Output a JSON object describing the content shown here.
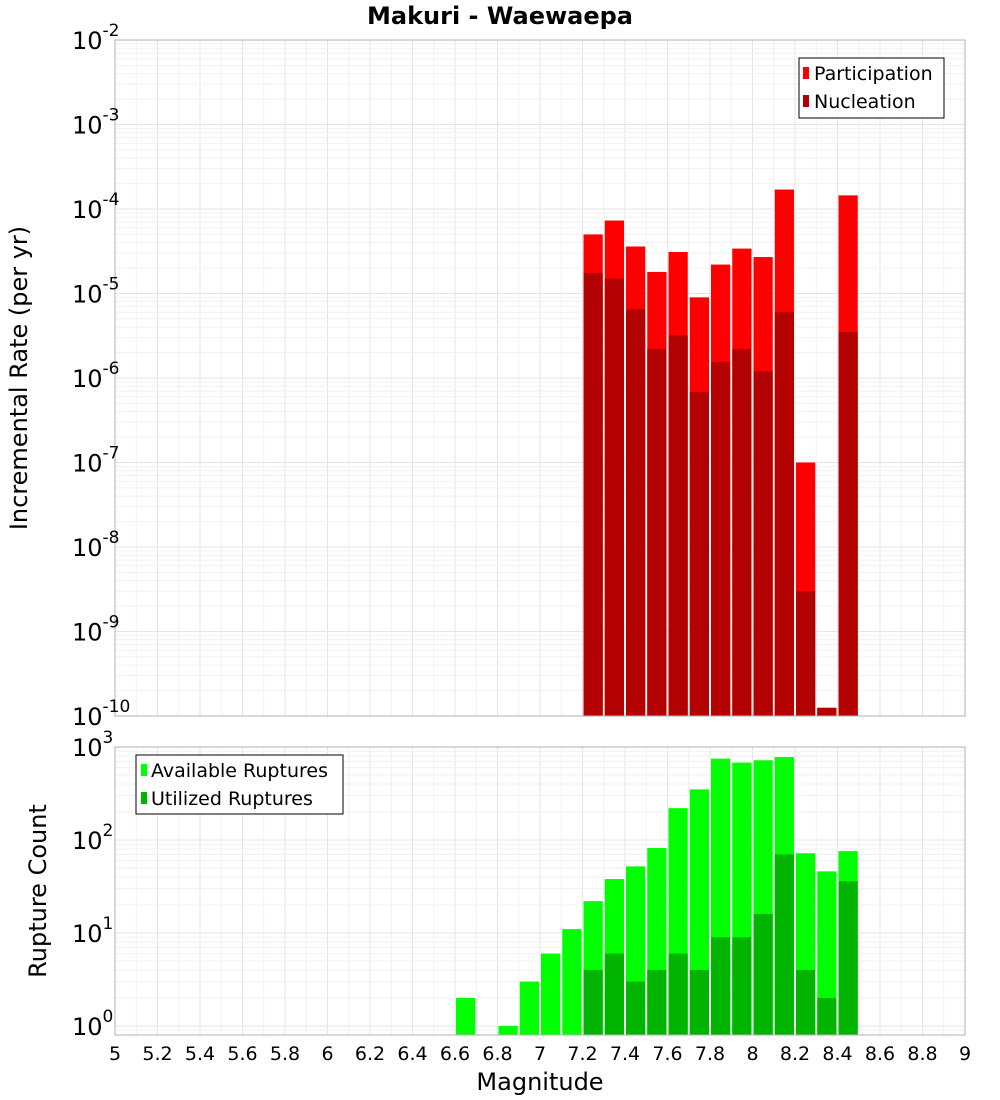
{
  "chart_data": [
    {
      "type": "bar",
      "title": "Makuri - Waewaepa",
      "xlabel": "",
      "ylabel": "Incremental Rate (per yr)",
      "yscale": "log",
      "ylim": [
        1e-10,
        0.01
      ],
      "xlim": [
        5,
        9
      ],
      "bar_width": 0.1,
      "grid": true,
      "legend_position": "top-right",
      "y_tick_exponents": [
        -10,
        -9,
        -8,
        -7,
        -6,
        -5,
        -4,
        -3,
        -2
      ],
      "series": [
        {
          "name": "Participation",
          "color": "#ff0000",
          "x": [
            7.25,
            7.35,
            7.45,
            7.55,
            7.65,
            7.75,
            7.85,
            7.95,
            8.05,
            8.15,
            8.25,
            8.35,
            8.45
          ],
          "values": [
            5e-05,
            7.3e-05,
            3.6e-05,
            1.8e-05,
            3.1e-05,
            9e-06,
            2.2e-05,
            3.4e-05,
            2.7e-05,
            0.00017,
            1e-07,
            1.25e-10,
            0.000145
          ]
        },
        {
          "name": "Nucleation",
          "color": "#b30000",
          "x": [
            7.25,
            7.35,
            7.45,
            7.55,
            7.65,
            7.75,
            7.85,
            7.95,
            8.05,
            8.15,
            8.25,
            8.35,
            8.45
          ],
          "values": [
            1.75e-05,
            1.5e-05,
            6.5e-06,
            2.2e-06,
            3.2e-06,
            6.8e-07,
            1.55e-06,
            2.2e-06,
            1.2e-06,
            6e-06,
            3e-09,
            1.25e-10,
            3.5e-06
          ]
        }
      ]
    },
    {
      "type": "bar",
      "title": "",
      "xlabel": "Magnitude",
      "ylabel": "Rupture Count",
      "yscale": "log",
      "ylim": [
        0.8,
        1000
      ],
      "xlim": [
        5,
        9
      ],
      "bar_width": 0.1,
      "grid": true,
      "legend_position": "top-left",
      "x_ticks": [
        "5",
        "5.2",
        "5.4",
        "5.6",
        "5.8",
        "6",
        "6.2",
        "6.4",
        "6.6",
        "6.8",
        "7",
        "7.2",
        "7.4",
        "7.6",
        "7.8",
        "8",
        "8.2",
        "8.4",
        "8.6",
        "8.8",
        "9"
      ],
      "y_tick_exponents": [
        0,
        1,
        2,
        3
      ],
      "series": [
        {
          "name": "Available Ruptures",
          "color": "#00ff00",
          "x": [
            6.65,
            6.85,
            6.95,
            7.05,
            7.15,
            7.25,
            7.35,
            7.45,
            7.55,
            7.65,
            7.75,
            7.85,
            7.95,
            8.05,
            8.15,
            8.25,
            8.35,
            8.45
          ],
          "values": [
            2,
            1,
            3,
            6,
            11,
            22,
            38,
            52,
            82,
            220,
            350,
            750,
            680,
            720,
            780,
            72,
            46,
            76
          ]
        },
        {
          "name": "Utilized Ruptures",
          "color": "#00b400",
          "x": [
            7.25,
            7.35,
            7.45,
            7.55,
            7.65,
            7.75,
            7.85,
            7.95,
            8.05,
            8.15,
            8.25,
            8.35,
            8.45
          ],
          "values": [
            4,
            6,
            3,
            4,
            6,
            4,
            9,
            9,
            16,
            70,
            4,
            2,
            36
          ]
        }
      ]
    }
  ]
}
